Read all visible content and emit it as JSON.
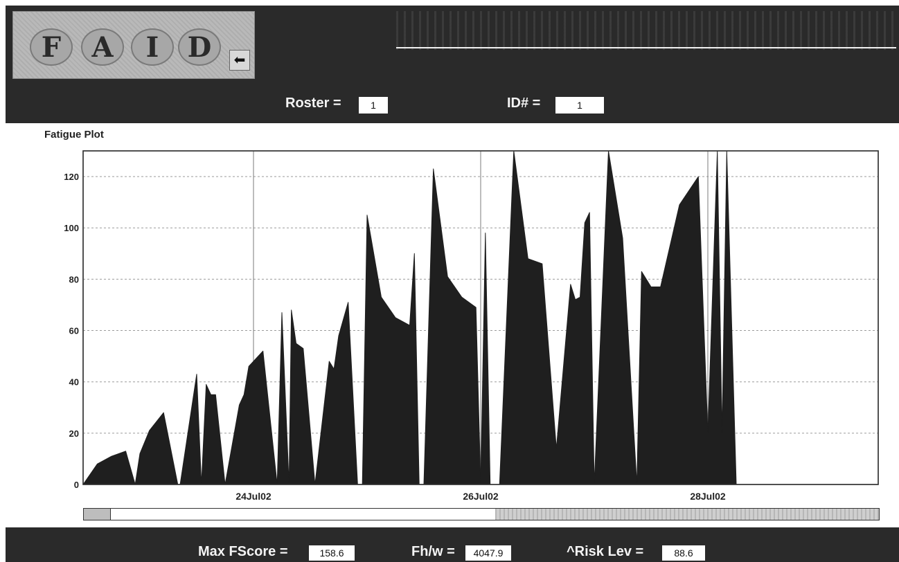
{
  "logo": {
    "letters": [
      "F",
      "A",
      "I",
      "D"
    ]
  },
  "header": {
    "roster_label": "Roster =",
    "roster_value": "1",
    "id_label": "ID# =",
    "id_value": "1"
  },
  "footer": {
    "max_fscore_label": "Max FScore =",
    "max_fscore_value": "158.6",
    "fhw_label": "Fh/w =",
    "fhw_value": "4047.9",
    "risk_label": "^Risk Lev =",
    "risk_value": "88.6"
  },
  "chart_data": {
    "type": "area",
    "title": "Fatigue Plot",
    "xlabel": "",
    "ylabel": "",
    "ylim": [
      0,
      130
    ],
    "yticks": [
      0,
      20,
      40,
      60,
      80,
      100,
      120
    ],
    "xlim": [
      "22Jul02 12:00",
      "29Jul02 12:00"
    ],
    "xticks": [
      "24Jul02",
      "26Jul02",
      "28Jul02"
    ],
    "grid": true,
    "fill_color": "#1f1f1f",
    "x": [
      "22Jul02 12:00",
      "22Jul02 15:00",
      "22Jul02 18:00",
      "22Jul02 21:00",
      "22Jul02 23:00",
      "23Jul02 00:00",
      "23Jul02 02:00",
      "23Jul02 05:00",
      "23Jul02 08:00",
      "23Jul02 08:30",
      "23Jul02 12:00",
      "23Jul02 13:00",
      "23Jul02 14:00",
      "23Jul02 15:00",
      "23Jul02 16:00",
      "23Jul02 18:00",
      "23Jul02 21:00",
      "23Jul02 22:00",
      "23Jul02 23:00",
      "24Jul02 02:00",
      "24Jul02 05:00",
      "24Jul02 06:00",
      "24Jul02 07:30",
      "24Jul02 08:00",
      "24Jul02 09:00",
      "24Jul02 10:30",
      "24Jul02 13:00",
      "24Jul02 16:00",
      "24Jul02 17:00",
      "24Jul02 18:00",
      "24Jul02 20:00",
      "24Jul02 22:00",
      "24Jul02 23:00",
      "25Jul02 00:00",
      "25Jul02 03:00",
      "25Jul02 06:00",
      "25Jul02 09:00",
      "25Jul02 10:00",
      "25Jul02 11:00",
      "25Jul02 12:00",
      "25Jul02 14:00",
      "25Jul02 17:00",
      "25Jul02 20:00",
      "25Jul02 23:00",
      "26Jul02 00:00",
      "26Jul02 01:00",
      "26Jul02 02:00",
      "26Jul02 04:00",
      "26Jul02 07:00",
      "26Jul02 10:00",
      "26Jul02 13:00",
      "26Jul02 16:00",
      "26Jul02 19:00",
      "26Jul02 20:00",
      "26Jul02 21:00",
      "26Jul02 22:00",
      "26Jul02 23:00",
      "27Jul02 00:00",
      "27Jul02 03:00",
      "27Jul02 06:00",
      "27Jul02 09:00",
      "27Jul02 10:00",
      "27Jul02 12:00",
      "27Jul02 14:00",
      "27Jul02 18:00",
      "27Jul02 22:00",
      "28Jul02 00:00",
      "28Jul02 02:00",
      "28Jul02 03:00",
      "28Jul02 04:00",
      "28Jul02 06:00",
      "28Jul02 08:00",
      "28Jul02 10:00",
      "28Jul02 13:00",
      "28Jul02 16:00",
      "28Jul02 18:00",
      "28Jul02 21:00",
      "29Jul02 00:00",
      "29Jul02 03:00",
      "29Jul02 04:00",
      "29Jul02 05:00",
      "29Jul02 08:00",
      "29Jul02 10:00"
    ],
    "values": [
      0,
      8,
      11,
      13,
      0,
      12,
      21,
      28,
      0,
      0,
      43,
      0,
      39,
      35,
      35,
      0,
      31,
      35,
      46,
      52,
      0,
      67,
      0,
      68,
      55,
      53,
      0,
      48,
      45,
      58,
      71,
      0,
      0,
      105,
      73,
      65,
      62,
      90,
      0,
      0,
      123,
      81,
      73,
      69,
      0,
      98,
      0,
      0,
      130,
      88,
      86,
      14,
      78,
      72,
      73,
      102,
      106,
      0,
      130,
      96,
      0,
      83,
      77,
      77,
      109,
      120,
      20,
      130,
      20,
      130,
      0,
      0,
      0,
      0,
      0,
      0,
      0,
      0,
      0,
      0,
      0,
      0,
      0
    ]
  }
}
